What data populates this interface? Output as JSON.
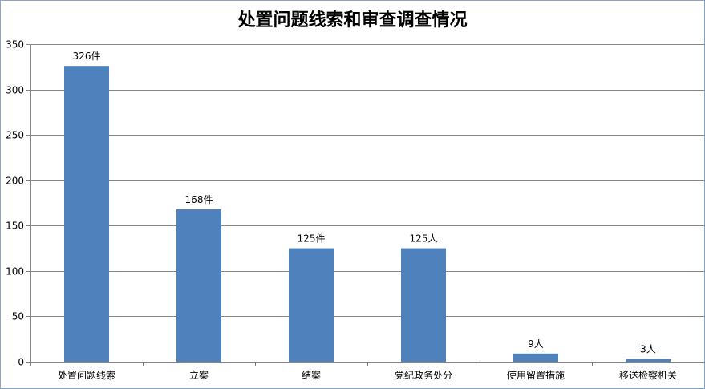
{
  "chart_data": {
    "type": "bar",
    "title": "处置问题线索和审查调查情况",
    "xlabel": "",
    "ylabel": "",
    "categories": [
      "处置问题线索",
      "立案",
      "结案",
      "党纪政务处分",
      "使用留置措施",
      "移送检察机关"
    ],
    "values": [
      326,
      168,
      125,
      125,
      9,
      3
    ],
    "data_labels": [
      "326件",
      "168件",
      "125件",
      "125人",
      "9人",
      "3人"
    ],
    "ylim": [
      0,
      350
    ],
    "yticks": [
      0,
      50,
      100,
      150,
      200,
      250,
      300,
      350
    ],
    "grid": true,
    "legend": "none",
    "colors": {
      "bar": "#4f81bd",
      "grid": "#868686",
      "axis": "#868686"
    }
  }
}
